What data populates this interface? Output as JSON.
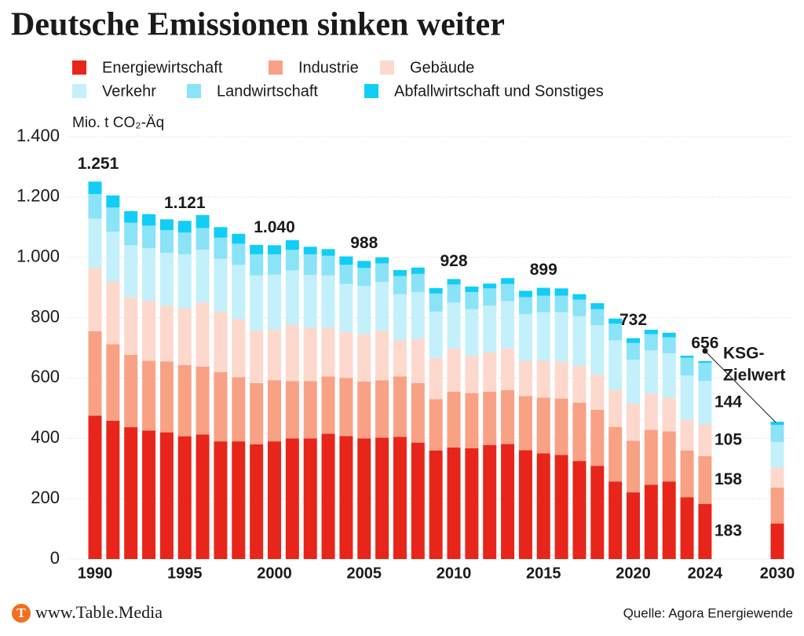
{
  "chart_data": {
    "type": "stacked_bar",
    "title": "Deutsche Emissionen sinken weiter",
    "y_label": "Mio. t CO₂-Äq",
    "categories": [
      "1990",
      null,
      null,
      null,
      null,
      "1995",
      null,
      null,
      null,
      null,
      "2000",
      null,
      null,
      null,
      null,
      "2005",
      null,
      null,
      null,
      null,
      "2010",
      null,
      null,
      null,
      null,
      "2015",
      null,
      null,
      null,
      null,
      "2020",
      null,
      null,
      null,
      "2024",
      "2030"
    ],
    "series": [
      {
        "name": "Energiewirtschaft",
        "color": "#e8251a",
        "values": [
          475,
          458,
          437,
          426,
          420,
          407,
          413,
          390,
          390,
          380,
          390,
          400,
          400,
          415,
          408,
          400,
          402,
          405,
          386,
          360,
          370,
          367,
          378,
          381,
          361,
          350,
          345,
          325,
          309,
          257,
          221,
          246,
          257,
          205,
          183,
          118
        ],
        "value_labels": [
          null,
          null,
          null,
          null,
          null,
          null,
          null,
          null,
          null,
          null,
          null,
          null,
          null,
          null,
          null,
          null,
          null,
          null,
          null,
          null,
          null,
          null,
          null,
          null,
          null,
          null,
          null,
          null,
          null,
          null,
          null,
          null,
          null,
          null,
          "183",
          null
        ]
      },
      {
        "name": "Industrie",
        "color": "#f9a184",
        "values": [
          280,
          254,
          240,
          231,
          235,
          236,
          225,
          230,
          213,
          203,
          203,
          190,
          190,
          190,
          192,
          188,
          190,
          200,
          197,
          170,
          185,
          183,
          177,
          179,
          179,
          185,
          187,
          193,
          186,
          181,
          171,
          182,
          166,
          155,
          158,
          119
        ],
        "value_labels": [
          null,
          null,
          null,
          null,
          null,
          null,
          null,
          null,
          null,
          null,
          null,
          null,
          null,
          null,
          null,
          null,
          null,
          null,
          null,
          null,
          null,
          null,
          null,
          null,
          null,
          null,
          null,
          null,
          null,
          null,
          null,
          null,
          null,
          null,
          "158",
          null
        ]
      },
      {
        "name": "Gebäude",
        "color": "#fdd8cd",
        "values": [
          210,
          208,
          190,
          200,
          185,
          187,
          212,
          200,
          192,
          174,
          167,
          187,
          177,
          162,
          152,
          157,
          165,
          120,
          147,
          137,
          143,
          123,
          130,
          138,
          117,
          122,
          123,
          122,
          117,
          123,
          123,
          120,
          112,
          102,
          105,
          66
        ],
        "value_labels": [
          null,
          null,
          null,
          null,
          null,
          null,
          null,
          null,
          null,
          null,
          null,
          null,
          null,
          null,
          null,
          null,
          null,
          null,
          null,
          null,
          null,
          null,
          null,
          null,
          null,
          null,
          null,
          null,
          null,
          null,
          null,
          null,
          null,
          null,
          "105",
          null
        ]
      },
      {
        "name": "Verkehr",
        "color": "#c3f0fb",
        "values": [
          163,
          165,
          173,
          173,
          175,
          180,
          175,
          175,
          180,
          183,
          183,
          180,
          175,
          173,
          160,
          160,
          161,
          153,
          155,
          153,
          152,
          155,
          155,
          157,
          155,
          161,
          163,
          165,
          163,
          164,
          146,
          144,
          147,
          146,
          144,
          85
        ],
        "value_labels": [
          null,
          null,
          null,
          null,
          null,
          null,
          null,
          null,
          null,
          null,
          null,
          null,
          null,
          null,
          null,
          null,
          null,
          null,
          null,
          null,
          null,
          null,
          null,
          null,
          null,
          null,
          null,
          null,
          null,
          null,
          null,
          null,
          null,
          null,
          "144",
          null
        ]
      },
      {
        "name": "Landwirtschaft",
        "color": "#8ae3f7",
        "values": [
          82,
          80,
          75,
          75,
          75,
          72,
          72,
          70,
          70,
          70,
          67,
          68,
          68,
          65,
          63,
          60,
          62,
          60,
          60,
          60,
          60,
          57,
          57,
          57,
          56,
          55,
          55,
          55,
          53,
          55,
          55,
          53,
          53,
          59,
          60,
          57
        ]
      },
      {
        "name": "Abfallwirtschaft und Sonstiges",
        "color": "#12cdf5",
        "values": [
          41,
          40,
          38,
          38,
          36,
          39,
          43,
          35,
          33,
          31,
          30,
          32,
          25,
          22,
          28,
          23,
          20,
          20,
          21,
          18,
          18,
          18,
          16,
          19,
          21,
          26,
          24,
          18,
          20,
          17,
          16,
          15,
          15,
          7,
          6,
          10
        ]
      }
    ],
    "totals": [
      {
        "value": 1251,
        "label": "1.251"
      },
      null,
      null,
      null,
      null,
      {
        "value": 1121,
        "label": "1.121"
      },
      null,
      null,
      null,
      null,
      {
        "value": 1040,
        "label": "1.040"
      },
      null,
      null,
      null,
      null,
      988,
      null,
      null,
      null,
      null,
      928,
      null,
      null,
      null,
      null,
      899,
      null,
      null,
      null,
      null,
      732,
      null,
      null,
      null,
      656,
      null
    ],
    "annotation": [
      "KSG-",
      "Zielwert"
    ],
    "ylim": [
      0,
      1400
    ],
    "yticks": [
      0,
      200,
      400,
      600,
      800,
      {
        "value": 1000,
        "label": "1.000"
      },
      {
        "value": 1200,
        "label": "1.200"
      },
      {
        "value": 1400,
        "label": "1.400"
      }
    ],
    "grid": true,
    "footer": {
      "brand": "www.Table.Media",
      "source": "Quelle: Agora Energiewende"
    }
  }
}
